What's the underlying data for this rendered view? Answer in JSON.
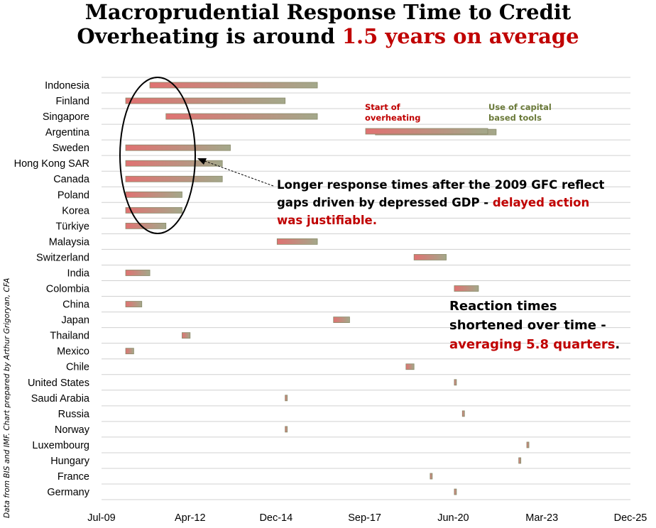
{
  "title": {
    "line1": "Macroprudential Response Time to Credit",
    "line2_prefix": "Overheating is around ",
    "line2_highlight": "1.5 years on average"
  },
  "legend": {
    "start_label": "Start of overheating",
    "end_label": "Use of capital based tools",
    "start_color": "#e07272",
    "end_color": "#a3a88a"
  },
  "annotations": {
    "gfc": {
      "text": "Longer response times after the 2009 GFC reflect gaps driven by depressed GDP - ",
      "highlight": "delayed action was justifiable."
    },
    "reaction": {
      "text": "Reaction times shortened over time - ",
      "highlight": "averaging 5.8 quarters",
      "suffix": "."
    }
  },
  "source": "Data from BIS and IMF. Chart prepared by Arthur Grigoryan, CFA",
  "colors": {
    "highlight": "#c00000",
    "grid": "#d0d0d0"
  },
  "chart_data": {
    "type": "bar",
    "orientation": "horizontal-range",
    "x_unit": "year",
    "xlim": [
      2009.5,
      2025.917
    ],
    "x_ticks": [
      {
        "label": "Jul-09",
        "value": 2009.5
      },
      {
        "label": "Apr-12",
        "value": 2012.25
      },
      {
        "label": "Dec-14",
        "value": 2014.917
      },
      {
        "label": "Sep-17",
        "value": 2017.667
      },
      {
        "label": "Jun-20",
        "value": 2020.417
      },
      {
        "label": "Mar-23",
        "value": 2023.167
      },
      {
        "label": "Dec-25",
        "value": 2025.917
      }
    ],
    "series": [
      {
        "name": "Start of overheating"
      },
      {
        "name": "Use of capital based tools"
      }
    ],
    "countries": [
      {
        "name": "Indonesia",
        "start": 2011.0,
        "end": 2016.2
      },
      {
        "name": "Finland",
        "start": 2010.25,
        "end": 2015.2
      },
      {
        "name": "Singapore",
        "start": 2011.5,
        "end": 2016.2
      },
      {
        "name": "Argentina",
        "start": 2018.0,
        "end": 2021.75
      },
      {
        "name": "Sweden",
        "start": 2010.25,
        "end": 2013.5
      },
      {
        "name": "Hong Kong SAR",
        "start": 2010.25,
        "end": 2013.25
      },
      {
        "name": "Canada",
        "start": 2010.25,
        "end": 2013.25
      },
      {
        "name": "Poland",
        "start": 2010.25,
        "end": 2012.0
      },
      {
        "name": "Korea",
        "start": 2010.25,
        "end": 2012.0
      },
      {
        "name": "Türkiye",
        "start": 2010.25,
        "end": 2011.5
      },
      {
        "name": "Malaysia",
        "start": 2014.95,
        "end": 2016.2
      },
      {
        "name": "Switzerland",
        "start": 2019.2,
        "end": 2020.2
      },
      {
        "name": "India",
        "start": 2010.25,
        "end": 2011.0
      },
      {
        "name": "Colombia",
        "start": 2020.45,
        "end": 2021.2
      },
      {
        "name": "China",
        "start": 2010.25,
        "end": 2010.75
      },
      {
        "name": "Japan",
        "start": 2016.7,
        "end": 2017.2
      },
      {
        "name": "Thailand",
        "start": 2012.0,
        "end": 2012.25
      },
      {
        "name": "Mexico",
        "start": 2010.25,
        "end": 2010.5
      },
      {
        "name": "Chile",
        "start": 2018.95,
        "end": 2019.2
      },
      {
        "name": "United States",
        "start": 2020.45,
        "end": 2020.5
      },
      {
        "name": "Saudi Arabia",
        "start": 2015.2,
        "end": 2015.25
      },
      {
        "name": "Russia",
        "start": 2020.7,
        "end": 2020.75
      },
      {
        "name": "Norway",
        "start": 2015.2,
        "end": 2015.25
      },
      {
        "name": "Luxembourg",
        "start": 2022.7,
        "end": 2022.75
      },
      {
        "name": "Hungary",
        "start": 2022.45,
        "end": 2022.5
      },
      {
        "name": "France",
        "start": 2019.7,
        "end": 2019.75
      },
      {
        "name": "Germany",
        "start": 2020.45,
        "end": 2020.5
      }
    ],
    "legend_position": "top-right",
    "grid": true
  }
}
